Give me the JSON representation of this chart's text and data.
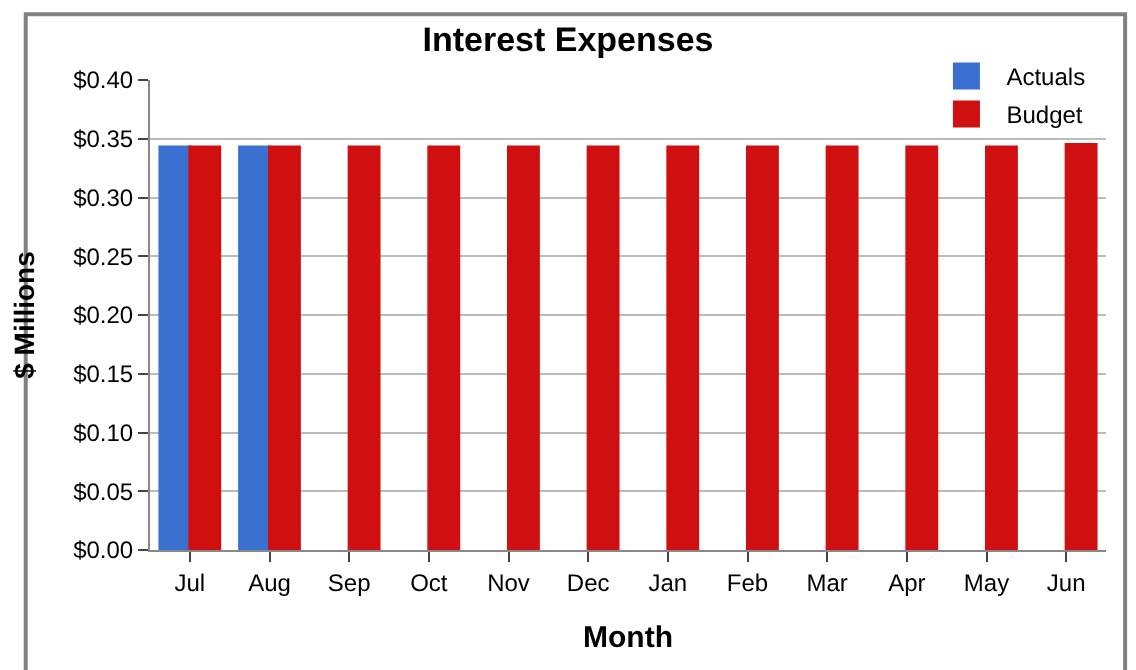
{
  "chart_data": {
    "type": "bar",
    "title": "Interest Expenses",
    "xlabel": "Month",
    "ylabel": "$ Millions",
    "categories": [
      "Jul",
      "Aug",
      "Sep",
      "Oct",
      "Nov",
      "Dec",
      "Jan",
      "Feb",
      "Mar",
      "Apr",
      "May",
      "Jun"
    ],
    "series": [
      {
        "name": "Actuals",
        "color": "#3a70d0",
        "values": [
          0.343,
          0.343,
          null,
          null,
          null,
          null,
          null,
          null,
          null,
          null,
          null,
          null
        ]
      },
      {
        "name": "Budget",
        "color": "#d01010",
        "values": [
          0.343,
          0.343,
          0.343,
          0.343,
          0.343,
          0.343,
          0.343,
          0.343,
          0.343,
          0.343,
          0.343,
          0.345
        ]
      }
    ],
    "ylim": [
      0,
      0.4
    ],
    "yticks": [
      {
        "value": 0,
        "label": "$0.00"
      },
      {
        "value": 0.05,
        "label": "$0.05"
      },
      {
        "value": 0.1,
        "label": "$0.10"
      },
      {
        "value": 0.15,
        "label": "$0.15"
      },
      {
        "value": 0.2,
        "label": "$0.20"
      },
      {
        "value": 0.25,
        "label": "$0.25"
      },
      {
        "value": 0.3,
        "label": "$0.30"
      },
      {
        "value": 0.35,
        "label": "$0.35"
      },
      {
        "value": 0.4,
        "label": "$0.40"
      }
    ],
    "grid": "y",
    "legend": "top right"
  }
}
